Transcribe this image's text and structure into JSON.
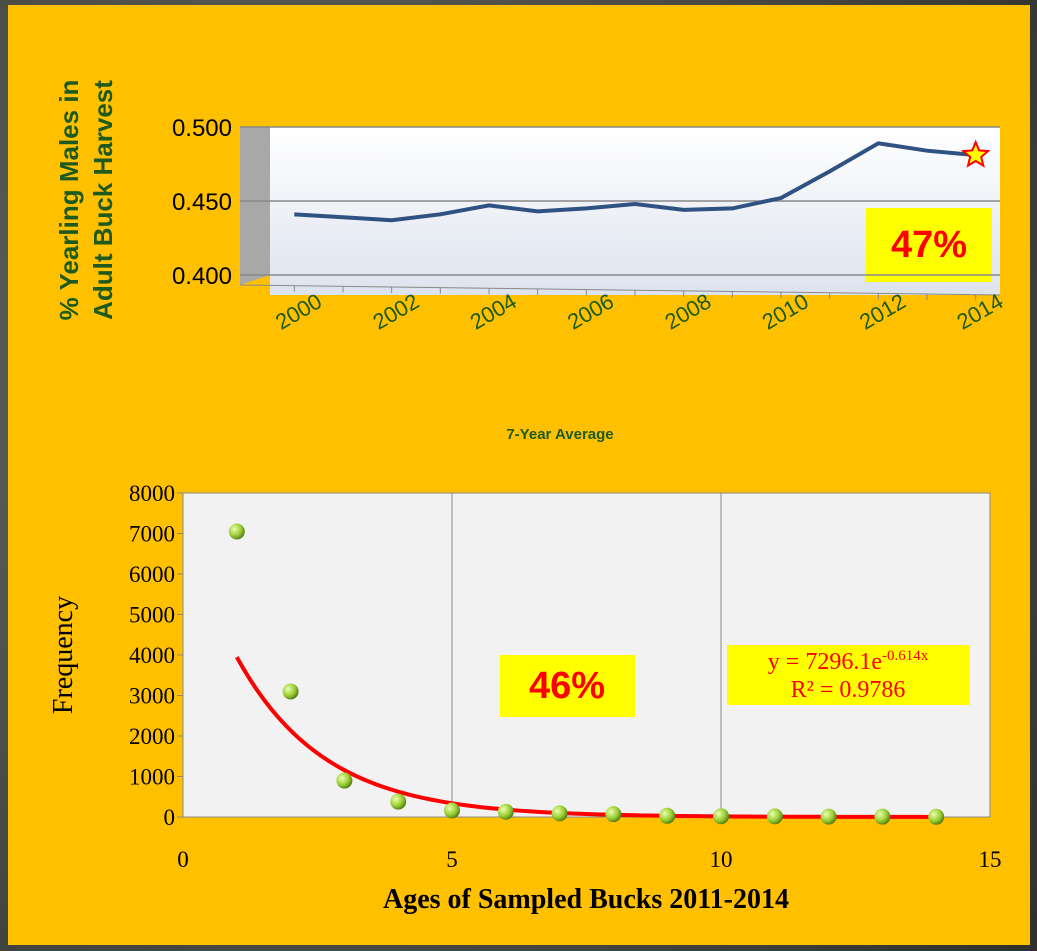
{
  "chart_data": [
    {
      "type": "line",
      "ylabel": [
        "% Yearling Males in",
        "Adult Buck Harvest"
      ],
      "categories": [
        "2000",
        null,
        "2002",
        null,
        "2004",
        null,
        "2006",
        null,
        "2008",
        null,
        "2010",
        null,
        "2012",
        null,
        "2014"
      ],
      "series": [
        {
          "color": "#2f5283",
          "values": [
            0.441,
            0.439,
            0.437,
            0.441,
            0.447,
            0.443,
            0.445,
            0.448,
            0.444,
            0.445,
            0.452,
            0.47,
            0.489,
            0.484,
            0.481
          ]
        }
      ],
      "ylim": [
        0.4,
        0.5
      ],
      "yticks": [
        {
          "value": 0.4,
          "label": "0.400"
        },
        {
          "value": 0.45,
          "label": "0.450"
        },
        {
          "value": 0.5,
          "label": "0.500"
        }
      ],
      "grid": true,
      "annotation": "47%",
      "subtitle": "7-Year Average"
    },
    {
      "type": "scatter",
      "ylabel": "Frequency",
      "xlabel": "Ages of Sampled Bucks 2011-2014",
      "x": [
        1,
        2,
        3,
        4,
        5,
        6,
        7,
        8,
        9,
        10,
        11,
        12,
        13,
        14
      ],
      "values": [
        7050,
        3100,
        900,
        380,
        160,
        130,
        90,
        70,
        30,
        20,
        15,
        10,
        8,
        5
      ],
      "color": "#9acd32",
      "xlim": [
        0,
        15
      ],
      "xticks": [
        0,
        5,
        10,
        15
      ],
      "ylim": [
        0,
        8000
      ],
      "yticks": [
        0,
        1000,
        2000,
        3000,
        4000,
        5000,
        6000,
        7000,
        8000
      ],
      "trend": {
        "a": 7296.1,
        "b": -0.614,
        "color": "#ff0000"
      },
      "equation": "y = 7296.1e",
      "equation_exponent": "-0.614x",
      "r_squared": "R² = 0.9786",
      "annotation": "46%"
    }
  ]
}
